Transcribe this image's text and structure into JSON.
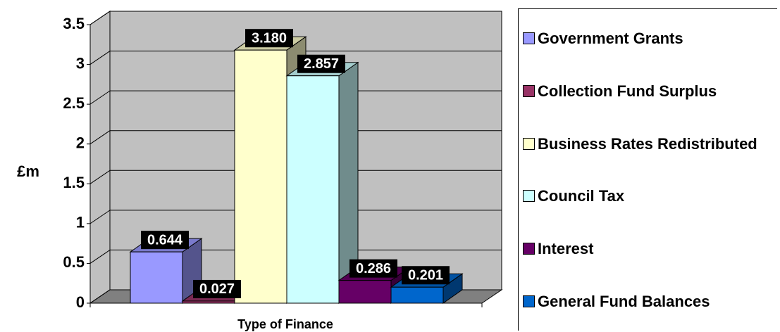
{
  "chart_data": {
    "type": "bar3d",
    "y_label": "£m",
    "x_label": "Type of Finance",
    "ylim": [
      0,
      3.5
    ],
    "yticks": [
      0,
      0.5,
      1,
      1.5,
      2,
      2.5,
      3,
      3.5
    ],
    "grid": true,
    "legend": "right",
    "series": [
      {
        "name": "Government Grants",
        "color": "#9999ff",
        "values": [
          0.644
        ],
        "value_labels": [
          "0.644"
        ]
      },
      {
        "name": "Collection Fund Surplus",
        "color": "#993366",
        "values": [
          0.027
        ],
        "value_labels": [
          "0.027"
        ]
      },
      {
        "name": "Business Rates Redistributed",
        "color": "#ffffcc",
        "values": [
          3.18
        ],
        "value_labels": [
          "3.180"
        ]
      },
      {
        "name": "Council Tax",
        "color": "#ccffff",
        "values": [
          2.857
        ],
        "value_labels": [
          "2.857"
        ]
      },
      {
        "name": "Interest",
        "color": "#660066",
        "values": [
          0.286
        ],
        "value_labels": [
          "0.286"
        ]
      },
      {
        "name": "General Fund Balances",
        "color": "#0066cc",
        "values": [
          0.201
        ],
        "value_labels": [
          "0.201"
        ]
      }
    ]
  }
}
